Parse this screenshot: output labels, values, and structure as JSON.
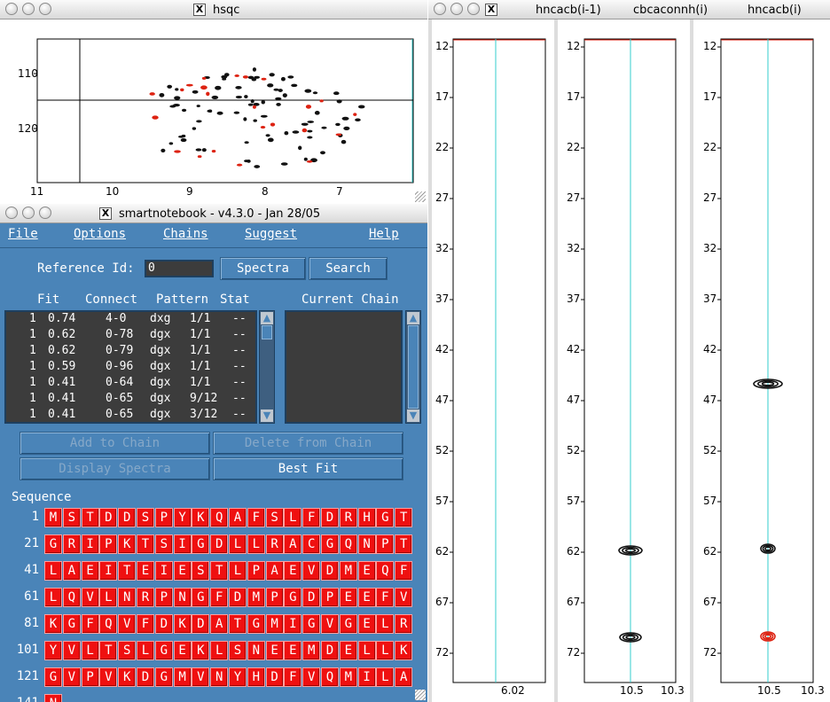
{
  "hsqc": {
    "title": "hsqc",
    "y_ticks": [
      "110",
      "120"
    ],
    "x_ticks": [
      "11",
      "10",
      "9",
      "8",
      "7"
    ]
  },
  "notebook": {
    "title": "smartnotebook - v4.3.0 - Jan 28/05",
    "menu": [
      "File",
      "Options",
      "Chains",
      "Suggest",
      "Help"
    ],
    "reference_label": "Reference Id:",
    "reference_value": "0",
    "spectra_button": "Spectra",
    "search_button": "Search",
    "fit_headers": {
      "fit": "Fit",
      "connect": "Connect",
      "pattern": "Pattern",
      "stat": "Stat"
    },
    "current_chain_label": "Current Chain",
    "fit_rows": [
      {
        "n": "1",
        "fit": "0.74",
        "connect": "4-0",
        "pattern": "dxg",
        "stat": "1/1",
        "extra": "--"
      },
      {
        "n": "1",
        "fit": "0.62",
        "connect": "0-78",
        "pattern": "dgx",
        "stat": "1/1",
        "extra": "--"
      },
      {
        "n": "1",
        "fit": "0.62",
        "connect": "0-79",
        "pattern": "dgx",
        "stat": "1/1",
        "extra": "--"
      },
      {
        "n": "1",
        "fit": "0.59",
        "connect": "0-96",
        "pattern": "dgx",
        "stat": "1/1",
        "extra": "--"
      },
      {
        "n": "1",
        "fit": "0.41",
        "connect": "0-64",
        "pattern": "dgx",
        "stat": "1/1",
        "extra": "--"
      },
      {
        "n": "1",
        "fit": "0.41",
        "connect": "0-65",
        "pattern": "dgx",
        "stat": "9/12",
        "extra": "--"
      },
      {
        "n": "1",
        "fit": "0.41",
        "connect": "0-65",
        "pattern": "dgx",
        "stat": "3/12",
        "extra": "--"
      }
    ],
    "buttons": {
      "add_to_chain": "Add to Chain",
      "delete_from_chain": "Delete from Chain",
      "display_spectra": "Display Spectra",
      "best_fit": "Best Fit"
    },
    "sequence_label": "Sequence",
    "sequence_rows": [
      {
        "start": "1",
        "residues": [
          "M",
          "S",
          "T",
          "D",
          "D",
          "S",
          "P",
          "Y",
          "K",
          "Q",
          "A",
          "F",
          "S",
          "L",
          "F",
          "D",
          "R",
          "H",
          "G",
          "T"
        ]
      },
      {
        "start": "21",
        "residues": [
          "G",
          "R",
          "I",
          "P",
          "K",
          "T",
          "S",
          "I",
          "G",
          "D",
          "L",
          "L",
          "R",
          "A",
          "C",
          "G",
          "Q",
          "N",
          "P",
          "T"
        ]
      },
      {
        "start": "41",
        "residues": [
          "L",
          "A",
          "E",
          "I",
          "T",
          "E",
          "I",
          "E",
          "S",
          "T",
          "L",
          "P",
          "A",
          "E",
          "V",
          "D",
          "M",
          "E",
          "Q",
          "F"
        ]
      },
      {
        "start": "61",
        "residues": [
          "L",
          "Q",
          "V",
          "L",
          "N",
          "R",
          "P",
          "N",
          "G",
          "F",
          "D",
          "M",
          "P",
          "G",
          "D",
          "P",
          "E",
          "E",
          "F",
          "V"
        ]
      },
      {
        "start": "81",
        "residues": [
          "K",
          "G",
          "F",
          "Q",
          "V",
          "F",
          "D",
          "K",
          "D",
          "A",
          "T",
          "G",
          "M",
          "I",
          "G",
          "V",
          "G",
          "E",
          "L",
          "R"
        ]
      },
      {
        "start": "101",
        "residues": [
          "Y",
          "V",
          "L",
          "T",
          "S",
          "L",
          "G",
          "E",
          "K",
          "L",
          "S",
          "N",
          "E",
          "E",
          "M",
          "D",
          "E",
          "L",
          "L",
          "K"
        ]
      },
      {
        "start": "121",
        "residues": [
          "G",
          "V",
          "P",
          "V",
          "K",
          "D",
          "G",
          "M",
          "V",
          "N",
          "Y",
          "H",
          "D",
          "F",
          "V",
          "Q",
          "M",
          "I",
          "L",
          "A"
        ]
      },
      {
        "start": "141",
        "residues": [
          "N"
        ]
      }
    ]
  },
  "strips": {
    "titles": [
      "hncacb(i-1)",
      "cbcaconnh(i)",
      "hncacb(i)"
    ],
    "y_ticks": [
      "12",
      "17",
      "22",
      "27",
      "32",
      "37",
      "42",
      "47",
      "52",
      "57",
      "62",
      "67",
      "72"
    ],
    "strip1_x": [
      "6.02"
    ],
    "strip2_x": [
      "10.5",
      "10.3"
    ],
    "strip3_x": [
      "10.5",
      "10.3"
    ]
  }
}
